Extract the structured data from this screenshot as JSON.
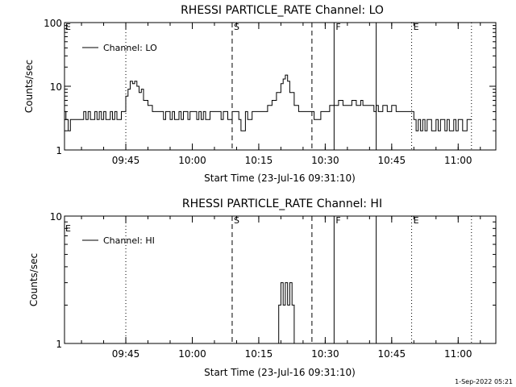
{
  "footer": {
    "stamp": "1-Sep-2022 05:21"
  },
  "colors": {
    "background": "#ffffff",
    "foreground": "#000000"
  },
  "chart_data": [
    {
      "type": "line",
      "title": "RHESSI PARTICLE_RATE Channel: LO",
      "xlabel": "Start Time (23-Jul-16 09:31:10)",
      "ylabel": "Counts/sec",
      "yscale": "log",
      "ylim": [
        1,
        100
      ],
      "y_ticks": [
        1,
        10,
        100
      ],
      "y_tick_labels": [
        "1",
        "10",
        "100"
      ],
      "xlim": [
        "09:31:10",
        "11:08:30"
      ],
      "x_ticks": [
        "09:45",
        "10:00",
        "10:15",
        "10:30",
        "10:45",
        "11:00"
      ],
      "grid": false,
      "legend": {
        "position": "top-left",
        "label": "Channel: LO"
      },
      "event_lines": [
        {
          "time": "09:45:00",
          "style": "dotted",
          "label": ""
        },
        {
          "time": "10:09:00",
          "style": "dashed",
          "label": "S"
        },
        {
          "time": "10:27:00",
          "style": "dashed",
          "label": ""
        },
        {
          "time": "10:32:00",
          "style": "solid",
          "label": "F"
        },
        {
          "time": "10:41:30",
          "style": "solid",
          "label": ""
        },
        {
          "time": "10:49:30",
          "style": "dotted",
          "label": "E"
        },
        {
          "time": "11:03:00",
          "style": "dotted",
          "label": ""
        }
      ],
      "corner_label": "E",
      "series": [
        {
          "name": "Channel: LO",
          "x": [
            "09:31:10",
            "09:31:30",
            "09:32:00",
            "09:32:30",
            "09:33:00",
            "09:34:00",
            "09:35:00",
            "09:35:30",
            "09:36:00",
            "09:36:30",
            "09:37:00",
            "09:37:30",
            "09:38:00",
            "09:38:30",
            "09:39:00",
            "09:39:30",
            "09:40:00",
            "09:40:30",
            "09:41:00",
            "09:41:30",
            "09:42:00",
            "09:42:30",
            "09:43:00",
            "09:44:00",
            "09:45:00",
            "09:45:30",
            "09:46:00",
            "09:46:30",
            "09:47:00",
            "09:47:30",
            "09:48:00",
            "09:48:30",
            "09:49:00",
            "09:50:00",
            "09:51:00",
            "09:52:00",
            "09:53:00",
            "09:53:30",
            "09:54:00",
            "09:54:30",
            "09:55:00",
            "09:55:30",
            "09:56:00",
            "09:57:00",
            "09:57:30",
            "09:58:00",
            "09:59:00",
            "09:59:30",
            "10:00:00",
            "10:01:00",
            "10:01:30",
            "10:02:00",
            "10:02:30",
            "10:03:00",
            "10:04:00",
            "10:04:30",
            "10:05:00",
            "10:06:00",
            "10:06:30",
            "10:07:00",
            "10:08:00",
            "10:09:00",
            "10:10:00",
            "10:10:30",
            "10:11:00",
            "10:12:00",
            "10:12:30",
            "10:13:00",
            "10:13:30",
            "10:14:00",
            "10:15:00",
            "10:16:00",
            "10:17:00",
            "10:18:00",
            "10:19:00",
            "10:20:00",
            "10:20:30",
            "10:21:00",
            "10:21:30",
            "10:22:00",
            "10:23:00",
            "10:24:00",
            "10:25:00",
            "10:26:00",
            "10:27:00",
            "10:27:30",
            "10:28:00",
            "10:29:00",
            "10:30:00",
            "10:31:00",
            "10:32:00",
            "10:33:00",
            "10:34:00",
            "10:35:00",
            "10:36:00",
            "10:37:00",
            "10:38:00",
            "10:38:30",
            "10:39:00",
            "10:40:00",
            "10:41:00",
            "10:41:30",
            "10:42:00",
            "10:43:00",
            "10:44:00",
            "10:45:00",
            "10:46:00",
            "10:47:00",
            "10:48:00",
            "10:49:00",
            "10:50:00",
            "10:50:30",
            "10:51:00",
            "10:51:30",
            "10:52:00",
            "10:52:30",
            "10:53:00",
            "10:54:00",
            "10:55:00",
            "10:55:30",
            "10:56:00",
            "10:57:00",
            "10:57:30",
            "10:58:00",
            "10:59:00",
            "10:59:30",
            "11:00:00",
            "11:01:00",
            "11:02:00",
            "11:03:00"
          ],
          "y": [
            4,
            3,
            2,
            3,
            3,
            3,
            3,
            4,
            3,
            4,
            3,
            3,
            4,
            3,
            4,
            3,
            4,
            3,
            3,
            4,
            3,
            4,
            3,
            4,
            7,
            9,
            12,
            11,
            12,
            10,
            8,
            9,
            6,
            5,
            4,
            4,
            4,
            3,
            4,
            4,
            3,
            4,
            3,
            4,
            3,
            4,
            3,
            4,
            4,
            3,
            4,
            3,
            4,
            3,
            4,
            4,
            4,
            4,
            3,
            4,
            3,
            4,
            4,
            3,
            2,
            4,
            3,
            3,
            4,
            4,
            4,
            4,
            5,
            6,
            8,
            11,
            13,
            15,
            12,
            8,
            5,
            4,
            4,
            4,
            4,
            3,
            3,
            4,
            4,
            5,
            5,
            6,
            5,
            5,
            6,
            5,
            6,
            5,
            5,
            5,
            4,
            5,
            4,
            5,
            4,
            5,
            4,
            4,
            4,
            4,
            3,
            2,
            3,
            2,
            3,
            2,
            3,
            2,
            3,
            2,
            3,
            2,
            3,
            2,
            3,
            2,
            3,
            2,
            3,
            3
          ]
        }
      ]
    },
    {
      "type": "line",
      "title": "RHESSI PARTICLE_RATE Channel: HI",
      "xlabel": "Start Time (23-Jul-16 09:31:10)",
      "ylabel": "Counts/sec",
      "yscale": "log",
      "ylim": [
        1,
        10
      ],
      "y_ticks": [
        1,
        10
      ],
      "y_tick_labels": [
        "1",
        "10"
      ],
      "xlim": [
        "09:31:10",
        "11:08:30"
      ],
      "x_ticks": [
        "09:45",
        "10:00",
        "10:15",
        "10:30",
        "10:45",
        "11:00"
      ],
      "grid": false,
      "legend": {
        "position": "top-left",
        "label": "Channel: HI"
      },
      "event_lines": [
        {
          "time": "09:45:00",
          "style": "dotted",
          "label": ""
        },
        {
          "time": "10:09:00",
          "style": "dashed",
          "label": "S"
        },
        {
          "time": "10:27:00",
          "style": "dashed",
          "label": ""
        },
        {
          "time": "10:32:00",
          "style": "solid",
          "label": "F"
        },
        {
          "time": "10:41:30",
          "style": "solid",
          "label": ""
        },
        {
          "time": "10:49:30",
          "style": "dotted",
          "label": "E"
        },
        {
          "time": "11:03:00",
          "style": "dotted",
          "label": ""
        }
      ],
      "corner_label": "E",
      "series": [
        {
          "name": "Channel: HI",
          "x": [
            "10:19:00",
            "10:19:30",
            "10:20:00",
            "10:20:30",
            "10:21:00",
            "10:21:30",
            "10:22:00",
            "10:22:30",
            "10:23:00"
          ],
          "y": [
            1,
            2,
            3,
            2,
            3,
            2,
            3,
            2,
            1
          ]
        }
      ]
    }
  ]
}
